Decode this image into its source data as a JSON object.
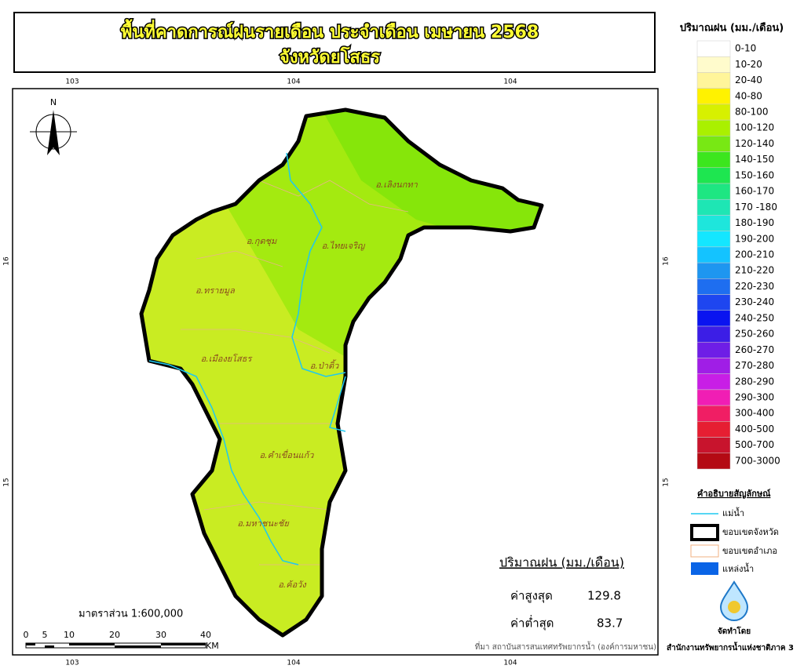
{
  "header": {
    "title_line1": "พื้นที่คาดการณ์ฝนรายเดือน ประจำเดือน เมษายน 2568",
    "title_line2": "จังหวัดยโสธร"
  },
  "grid_labels": {
    "top": [
      "103",
      "104",
      "104"
    ],
    "bottom": [
      "103",
      "104",
      "104"
    ],
    "left": [
      "16",
      "15"
    ],
    "right": [
      "16",
      "15"
    ]
  },
  "north_arrow": "N",
  "districts": [
    "อ.เลิงนกทา",
    "อ.กุดชุม",
    "อ.ไทยเจริญ",
    "อ.ทรายมูล",
    "อ.เมืองยโสธร",
    "อ.ป่าติ้ว",
    "อ.คำเขื่อนแก้ว",
    "อ.มหาชนะชัย",
    "อ.ค้อวัง"
  ],
  "scale": {
    "text": "มาตราส่วน 1:600,000",
    "numbers": [
      "0",
      "5",
      "10",
      "20",
      "30",
      "40"
    ],
    "unit": "KM"
  },
  "stats": {
    "title": "ปริมาณฝน (มม./เดือน)",
    "max_label": "ค่าสูงสุด",
    "max_value": "129.8",
    "min_label": "ค่าต่ำสุด",
    "min_value": "83.7"
  },
  "source": "ที่มา  สถาบันสารสนเทศทรัพยากรน้ำ (องค์การมหาชน)",
  "rain_legend": {
    "title": "ปริมาณฝน (มม./เดือน)",
    "classes": [
      {
        "label": "0-10",
        "color": "#ffffff"
      },
      {
        "label": "10-20",
        "color": "#fffbcc"
      },
      {
        "label": "20-40",
        "color": "#fff59a"
      },
      {
        "label": "40-80",
        "color": "#fff200"
      },
      {
        "label": "80-100",
        "color": "#d7f000"
      },
      {
        "label": "100-120",
        "color": "#aaf000"
      },
      {
        "label": "120-140",
        "color": "#78e814"
      },
      {
        "label": "140-150",
        "color": "#3ce61e"
      },
      {
        "label": "150-160",
        "color": "#1ee650"
      },
      {
        "label": "160-170",
        "color": "#1ee682"
      },
      {
        "label": "170 -180",
        "color": "#1ee6b4"
      },
      {
        "label": "180-190",
        "color": "#1ee6dc"
      },
      {
        "label": "190-200",
        "color": "#14e6ff"
      },
      {
        "label": "200-210",
        "color": "#14c3ff"
      },
      {
        "label": "210-220",
        "color": "#1e96f0"
      },
      {
        "label": "220-230",
        "color": "#1e6ef0"
      },
      {
        "label": "230-240",
        "color": "#1e46f0"
      },
      {
        "label": "240-250",
        "color": "#0a14f0"
      },
      {
        "label": "250-260",
        "color": "#3c1ee6"
      },
      {
        "label": "260-270",
        "color": "#6e1ee6"
      },
      {
        "label": "270-280",
        "color": "#a01ee6"
      },
      {
        "label": "280-290",
        "color": "#c81ee6"
      },
      {
        "label": "290-300",
        "color": "#f01eb4"
      },
      {
        "label": "300-400",
        "color": "#f01e64"
      },
      {
        "label": "400-500",
        "color": "#e61e32"
      },
      {
        "label": "500-700",
        "color": "#c8142d"
      },
      {
        "label": "700-3000",
        "color": "#b40a14"
      }
    ]
  },
  "symbol_legend": {
    "title": "คำอธิบายสัญลักษณ์",
    "items": [
      "แม่น้ำ",
      "ขอบเขตจังหวัด",
      "ขอบเขตอำเภอ",
      "แหล่งน้ำ"
    ]
  },
  "credit": {
    "label": "จัดทำโดย",
    "org": "สำนักงานทรัพยากรน้ำแห่งชาติภาค 3"
  }
}
